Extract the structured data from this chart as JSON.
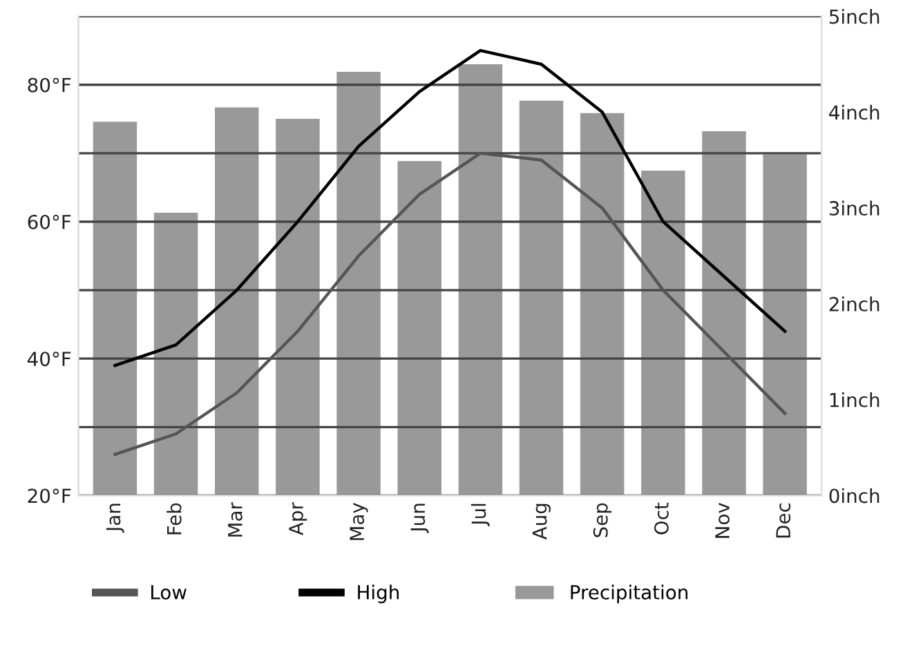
{
  "chart_data": {
    "type": "line",
    "categories": [
      "Jan",
      "Feb",
      "Mar",
      "Apr",
      "May",
      "Jun",
      "Jul",
      "Aug",
      "Sep",
      "Oct",
      "Nov",
      "Dec"
    ],
    "series": [
      {
        "name": "Low",
        "color": "#555555",
        "values": [
          26,
          29,
          35,
          44,
          55,
          64,
          70,
          69,
          62,
          50,
          41,
          32
        ]
      },
      {
        "name": "High",
        "color": "#000000",
        "values": [
          39,
          42,
          50,
          60,
          71,
          79,
          85,
          83,
          76,
          60,
          52,
          44
        ]
      },
      {
        "name": "Precipitation",
        "type": "bar",
        "axis": "y2",
        "color": "#999999",
        "values": [
          3.9,
          2.95,
          4.05,
          3.93,
          4.42,
          3.49,
          4.5,
          4.12,
          3.99,
          3.39,
          3.8,
          3.56
        ]
      }
    ],
    "ylim": [
      20,
      90
    ],
    "yticks": [
      {
        "value": 20,
        "label": "20°F"
      },
      {
        "value": 30,
        "label": null
      },
      {
        "value": 40,
        "label": "40°F"
      },
      {
        "value": 50,
        "label": null
      },
      {
        "value": 60,
        "label": "60°F"
      },
      {
        "value": 70,
        "label": null
      },
      {
        "value": 80,
        "label": "80°F"
      },
      {
        "value": 90,
        "label": null
      }
    ],
    "y2lim": [
      0,
      5
    ],
    "y2ticks": [
      {
        "value": 0,
        "label": "0inch"
      },
      {
        "value": 1,
        "label": "1inch"
      },
      {
        "value": 2,
        "label": "2inch"
      },
      {
        "value": 3,
        "label": "3inch"
      },
      {
        "value": 4,
        "label": "4inch"
      },
      {
        "value": 5,
        "label": "5inch"
      }
    ],
    "grid": "y",
    "legend": "bottom",
    "line_style": "solid",
    "marker": "none"
  }
}
